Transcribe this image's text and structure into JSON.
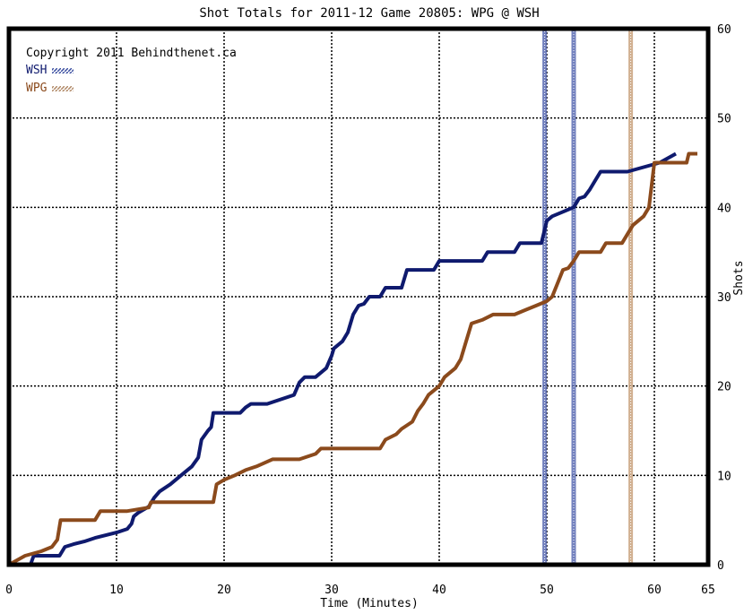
{
  "chart_data": {
    "type": "line",
    "title": "Shot Totals for 2011-12 Game 20805: WPG @ WSH",
    "xlabel": "Time (Minutes)",
    "ylabel": "Shots",
    "xlim": [
      0,
      65
    ],
    "ylim": [
      0,
      60
    ],
    "xticks": [
      0,
      10,
      20,
      30,
      40,
      50,
      60,
      65
    ],
    "yticks": [
      0,
      10,
      20,
      30,
      40,
      50,
      60
    ],
    "y_axis_side": "right",
    "grid": true,
    "legend_position": "top-left",
    "annotation": "Copyright 2011 Behindthenet.ca",
    "series": [
      {
        "name": "WSH",
        "color": "#0f1a6e",
        "points": [
          [
            0,
            0
          ],
          [
            2.0,
            0
          ],
          [
            2.3,
            1
          ],
          [
            4.7,
            1
          ],
          [
            5.2,
            2
          ],
          [
            6.0,
            2.3
          ],
          [
            7.0,
            2.6
          ],
          [
            8.0,
            3.0
          ],
          [
            9.0,
            3.3
          ],
          [
            10.0,
            3.6
          ],
          [
            11.0,
            4.0
          ],
          [
            11.4,
            4.6
          ],
          [
            11.6,
            5.4
          ],
          [
            12.0,
            5.8
          ],
          [
            13.0,
            6.5
          ],
          [
            13.5,
            7.5
          ],
          [
            14.0,
            8.2
          ],
          [
            15.0,
            9.0
          ],
          [
            16.0,
            10.0
          ],
          [
            17.0,
            11.0
          ],
          [
            17.6,
            12.0
          ],
          [
            17.9,
            14.0
          ],
          [
            18.5,
            15.0
          ],
          [
            18.8,
            15.4
          ],
          [
            19.0,
            17.0
          ],
          [
            21.5,
            17.0
          ],
          [
            22.0,
            17.6
          ],
          [
            22.5,
            18.0
          ],
          [
            24.0,
            18.0
          ],
          [
            26.5,
            19.0
          ],
          [
            27.0,
            20.4
          ],
          [
            27.5,
            21.0
          ],
          [
            28.5,
            21.0
          ],
          [
            29.5,
            22.0
          ],
          [
            30.0,
            23.4
          ],
          [
            30.2,
            24.2
          ],
          [
            31.0,
            25.0
          ],
          [
            31.5,
            26.0
          ],
          [
            32.0,
            28.0
          ],
          [
            32.5,
            29.0
          ],
          [
            33.0,
            29.2
          ],
          [
            33.5,
            30.0
          ],
          [
            34.5,
            30.0
          ],
          [
            35.0,
            31.0
          ],
          [
            36.5,
            31.0
          ],
          [
            37.0,
            33.0
          ],
          [
            39.5,
            33.0
          ],
          [
            40.0,
            34.0
          ],
          [
            44.0,
            34.0
          ],
          [
            44.5,
            35.0
          ],
          [
            47.0,
            35.0
          ],
          [
            47.5,
            36.0
          ],
          [
            49.5,
            36.0
          ],
          [
            50.0,
            38.5
          ],
          [
            50.5,
            39.0
          ],
          [
            51.5,
            39.5
          ],
          [
            52.5,
            40.0
          ],
          [
            53.0,
            41.0
          ],
          [
            53.5,
            41.2
          ],
          [
            54.0,
            42.0
          ],
          [
            54.5,
            43.0
          ],
          [
            55.0,
            44.0
          ],
          [
            57.5,
            44.0
          ],
          [
            60.5,
            45.0
          ],
          [
            62.0,
            46.0
          ]
        ]
      },
      {
        "name": "WPG",
        "color": "#8b4a1c",
        "points": [
          [
            0,
            0
          ],
          [
            1.5,
            1
          ],
          [
            3.0,
            1.5
          ],
          [
            4.0,
            2.0
          ],
          [
            4.5,
            2.8
          ],
          [
            4.8,
            5.0
          ],
          [
            8.0,
            5.0
          ],
          [
            8.5,
            6.0
          ],
          [
            11.0,
            6.0
          ],
          [
            13.0,
            6.4
          ],
          [
            13.2,
            7.0
          ],
          [
            19.0,
            7.0
          ],
          [
            19.3,
            9.0
          ],
          [
            20.0,
            9.5
          ],
          [
            21.0,
            10.0
          ],
          [
            22.0,
            10.6
          ],
          [
            23.0,
            11.0
          ],
          [
            24.5,
            11.8
          ],
          [
            27.0,
            11.8
          ],
          [
            28.5,
            12.4
          ],
          [
            29.0,
            13.0
          ],
          [
            34.5,
            13.0
          ],
          [
            35.0,
            14.0
          ],
          [
            36.0,
            14.6
          ],
          [
            36.5,
            15.2
          ],
          [
            37.5,
            16.0
          ],
          [
            38.0,
            17.2
          ],
          [
            38.5,
            18.0
          ],
          [
            39.0,
            19.0
          ],
          [
            40.0,
            20.0
          ],
          [
            40.5,
            21.0
          ],
          [
            41.0,
            21.5
          ],
          [
            41.5,
            22.0
          ],
          [
            42.0,
            23.0
          ],
          [
            42.5,
            25.0
          ],
          [
            43.0,
            27.0
          ],
          [
            44.0,
            27.4
          ],
          [
            45.0,
            28.0
          ],
          [
            47.0,
            28.0
          ],
          [
            48.0,
            28.5
          ],
          [
            49.0,
            29.0
          ],
          [
            50.0,
            29.5
          ],
          [
            50.5,
            30.0
          ],
          [
            51.0,
            31.5
          ],
          [
            51.5,
            33.0
          ],
          [
            52.0,
            33.2
          ],
          [
            52.5,
            34.0
          ],
          [
            53.0,
            35.0
          ],
          [
            55.0,
            35.0
          ],
          [
            55.5,
            36.0
          ],
          [
            57.0,
            36.0
          ],
          [
            57.5,
            37.0
          ],
          [
            58.0,
            38.0
          ],
          [
            59.0,
            39.0
          ],
          [
            59.5,
            40.0
          ],
          [
            60.0,
            45.0
          ],
          [
            63.0,
            45.0
          ],
          [
            63.2,
            46.0
          ],
          [
            64.0,
            46.0
          ]
        ]
      }
    ],
    "markers": [
      {
        "x": 49.8,
        "color": "#5a6bb3",
        "label": "WSH"
      },
      {
        "x": 52.5,
        "color": "#5a6bb3",
        "label": "WSH"
      },
      {
        "x": 57.8,
        "color": "#c9a27e",
        "label": "WPG"
      }
    ]
  }
}
